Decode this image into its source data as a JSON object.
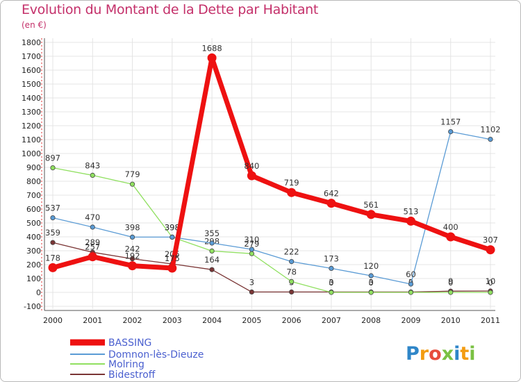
{
  "title": "Evolution du Montant de la Dette par Habitant",
  "subtitle": "(en €)",
  "brand": "Proxiti",
  "chart_data": {
    "type": "line",
    "x": [
      "2000",
      "2001",
      "2002",
      "2003",
      "2004",
      "2005",
      "2006",
      "2007",
      "2008",
      "2009",
      "2010",
      "2011"
    ],
    "ylim": [
      -100,
      1800
    ],
    "yticks": [
      "-100",
      "0",
      "100",
      "200",
      "300",
      "400",
      "500",
      "600",
      "700",
      "800",
      "900",
      "1000",
      "1100",
      "1200",
      "1300",
      "1400",
      "1500",
      "1600",
      "1700",
      "1800"
    ],
    "grid": true,
    "legend_position": "bottom-left",
    "series": [
      {
        "name": "BASSING",
        "color": "#ee1111",
        "values": [
          178,
          257,
          192,
          175,
          1688,
          840,
          719,
          642,
          561,
          513,
          400,
          307
        ],
        "labels": [
          "178",
          "257",
          "192",
          "175",
          "1688",
          "840",
          "719",
          "642",
          "561",
          "513",
          "400",
          "307"
        ]
      },
      {
        "name": "Domnon-lès-Dieuze",
        "color": "#5a9bd5",
        "values": [
          537,
          470,
          398,
          398,
          355,
          310,
          222,
          173,
          120,
          60,
          1157,
          1102
        ],
        "labels": [
          "537",
          "470",
          "398",
          "398",
          "355",
          "310",
          "222",
          "173",
          "120",
          "60",
          "1157",
          "1102"
        ]
      },
      {
        "name": "Molring",
        "color": "#90e060",
        "values": [
          897,
          843,
          779,
          398,
          298,
          279,
          78,
          0,
          0,
          0,
          0,
          0
        ],
        "labels": [
          "897",
          "843",
          "779",
          "398",
          "298",
          "279",
          "78",
          "0",
          "0",
          "0",
          "0",
          "0"
        ]
      },
      {
        "name": "Bidestroff",
        "color": "#7a3535",
        "values": [
          359,
          289,
          242,
          205,
          164,
          3,
          3,
          3,
          3,
          3,
          9,
          10
        ],
        "labels": [
          "359",
          "289",
          "242",
          "205",
          "164",
          "3",
          "3",
          "3",
          "3",
          "3",
          "9",
          "10"
        ]
      }
    ]
  }
}
